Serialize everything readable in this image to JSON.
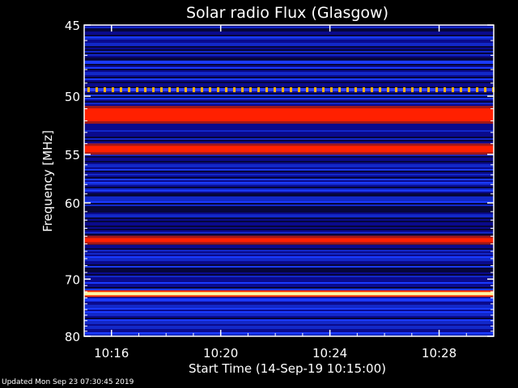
{
  "footer": {
    "updated": "Updated Mon Sep 23 07:30:45 2019"
  },
  "chart_data": {
    "type": "heatmap",
    "title": "Solar radio Flux (Glasgow)",
    "xlabel": "Start Time (14-Sep-19 10:15:00)",
    "ylabel": "Frequency [MHz]",
    "x_ticks": [
      "10:16",
      "10:20",
      "10:24",
      "10:28"
    ],
    "y_ticks": [
      45,
      50,
      55,
      60,
      70,
      80
    ],
    "y_range": [
      45,
      80
    ],
    "y_scale": "reciprocal",
    "x_range_minutes": [
      0,
      15
    ],
    "colors": {
      "background": "#000000",
      "low": "#0a0a8c",
      "mid": "#1a3aff",
      "high": "#ff2000",
      "peak": "#fff5a0"
    },
    "bright_bands": [
      {
        "freq_mhz": 49.5,
        "level": "spiky"
      },
      {
        "freq_mhz": 51.5,
        "level": "high"
      },
      {
        "freq_mhz": 54.5,
        "level": "high"
      },
      {
        "freq_mhz": 64.5,
        "level": "high"
      },
      {
        "freq_mhz": 72.3,
        "level": "peak"
      }
    ]
  }
}
